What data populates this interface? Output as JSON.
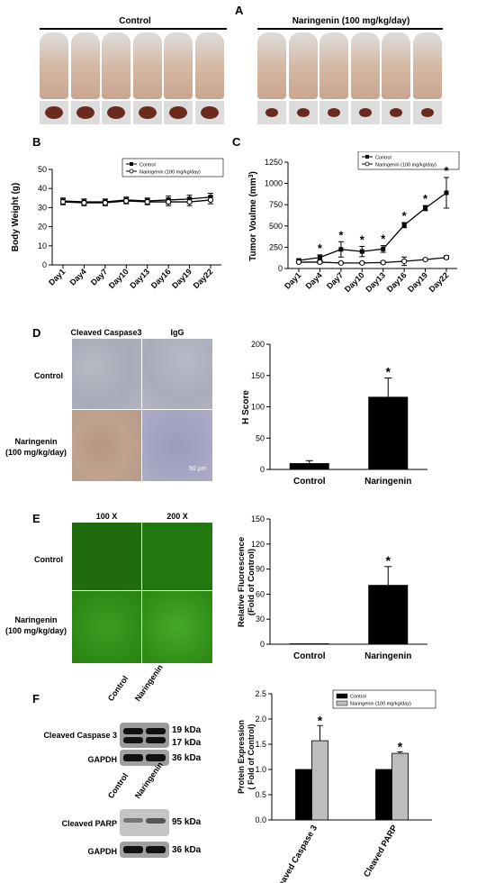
{
  "panels": {
    "A": "A",
    "B": "B",
    "C": "C",
    "D": "D",
    "E": "E",
    "F": "F"
  },
  "panel_a": {
    "control_label": "Control",
    "treat_label": "Naringenin (100 mg/kg/day)"
  },
  "panel_d_images": {
    "col1": "Cleaved Caspase3",
    "col2": "IgG",
    "row1": "Control",
    "row2_l1": "Naringenin",
    "row2_l2": "(100 mg/kg/day)",
    "scale": "50 μm"
  },
  "panel_e_images": {
    "col1": "100 X",
    "col2": "200 X",
    "row1": "Control",
    "row2_l1": "Naringenin",
    "row2_l2": "(100 mg/kg/day)"
  },
  "panel_f_blots": {
    "lane1": "Control",
    "lane2": "Naringenin",
    "row1": "Cleaved Caspase 3",
    "row2": "GAPDH",
    "row3": "Cleaved PARP",
    "row4": "GAPDH",
    "kda1a": "19 kDa",
    "kda1b": "17 kDa",
    "kda2": "36 kDa",
    "kda3": "95 kDa",
    "kda4": "36 kDa"
  },
  "chart_data": [
    {
      "id": "B",
      "type": "line",
      "categories": [
        "Day1",
        "Day4",
        "Day7",
        "Day10",
        "Day13",
        "Day16",
        "Day19",
        "Day22"
      ],
      "ylabel": "Body Weight (g)",
      "xlabel": "",
      "ylim": [
        0,
        50
      ],
      "yticks": [
        0,
        10,
        20,
        30,
        40,
        50
      ],
      "legend_position": "top-right",
      "series": [
        {
          "name": "Control",
          "values": [
            33.5,
            33,
            33,
            34,
            33.5,
            34,
            34.5,
            35.5
          ],
          "err": [
            1.5,
            1.5,
            1.5,
            1.5,
            1.5,
            2,
            2,
            2
          ],
          "marker": "filled"
        },
        {
          "name": "Naringenin (100 mg/kg/day)",
          "values": [
            33,
            32.5,
            32.5,
            33.5,
            33,
            33,
            33,
            34
          ],
          "err": [
            1.5,
            1.5,
            1.5,
            1.5,
            1.5,
            2,
            2,
            2
          ],
          "marker": "open"
        }
      ]
    },
    {
      "id": "C",
      "type": "line",
      "categories": [
        "Day1",
        "Day4",
        "Day7",
        "Day10",
        "Day13",
        "Day16",
        "Day19",
        "Day22"
      ],
      "ylabel": "Tumor Voulme (mm",
      "ylabel_sup": "3",
      "ylabel_end": ")",
      "xlabel": "",
      "ylim": [
        0,
        1250
      ],
      "yticks": [
        0,
        250,
        500,
        750,
        1000,
        1250
      ],
      "legend_position": "top-right",
      "series": [
        {
          "name": "Control",
          "values": [
            95,
            130,
            225,
            200,
            230,
            510,
            710,
            890
          ],
          "err": [
            15,
            30,
            90,
            60,
            40,
            30,
            30,
            180
          ],
          "marker": "filled"
        },
        {
          "name": "Naringenin (100 mg/kg/day)",
          "values": [
            75,
            75,
            65,
            65,
            70,
            85,
            105,
            130
          ],
          "err": [
            10,
            15,
            10,
            10,
            15,
            50,
            10,
            20
          ],
          "marker": "open"
        }
      ],
      "annotations": [
        "*",
        "*",
        "*",
        "*",
        "*",
        "*",
        "*"
      ]
    },
    {
      "id": "D",
      "type": "bar",
      "categories": [
        "Control",
        "Naringenin"
      ],
      "values": [
        10,
        116
      ],
      "err": [
        4,
        30
      ],
      "ylabel": "H Score",
      "ylim": [
        0,
        200
      ],
      "yticks": [
        0,
        50,
        100,
        150,
        200
      ],
      "annotations": [
        "",
        "*"
      ]
    },
    {
      "id": "E",
      "type": "bar",
      "categories": [
        "Control",
        "Naringenin"
      ],
      "values": [
        1,
        71
      ],
      "err": [
        0,
        22
      ],
      "ylabel": "Relative Fluorescence",
      "ylabel2": "(Fold of Control)",
      "ylim": [
        0,
        150
      ],
      "yticks": [
        0,
        30,
        60,
        90,
        120,
        150
      ],
      "annotations": [
        "",
        "*"
      ]
    },
    {
      "id": "F",
      "type": "bar",
      "categories": [
        "Cleaved Caspase 3",
        "Cleaved PARP"
      ],
      "ylabel": "Protein Expression",
      "ylabel2": "( Fold of Control)",
      "ylim": [
        0,
        2.5
      ],
      "yticks": [
        "0.0",
        "0.5",
        "1.0",
        "1.5",
        "2.0",
        "2.5"
      ],
      "legend_position": "top-right",
      "series": [
        {
          "name": "Control",
          "values": [
            1.0,
            1.0
          ],
          "err": [
            0,
            0
          ],
          "color": "#000000"
        },
        {
          "name": "Naringenin (100 mg/kg/day)",
          "values": [
            1.57,
            1.32
          ],
          "err": [
            0.3,
            0.03
          ],
          "color": "#bdbdbd"
        }
      ],
      "annotations": [
        "*",
        "*"
      ]
    }
  ]
}
